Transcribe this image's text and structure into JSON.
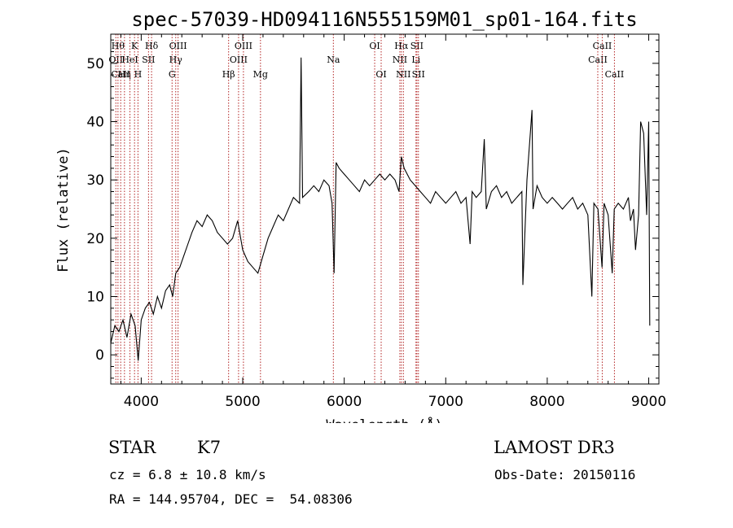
{
  "chart_data": {
    "type": "line",
    "title": "spec-57039-HD094116N555159M01_sp01-164.fits",
    "xlabel": "Wavelength (Å)",
    "ylabel": "Flux (relative)",
    "xlim": [
      3700,
      9100
    ],
    "ylim": [
      -5,
      55
    ],
    "xticks": [
      4000,
      5000,
      6000,
      7000,
      8000,
      9000
    ],
    "yticks": [
      0,
      10,
      20,
      30,
      40,
      50
    ],
    "series": [
      {
        "color": "#000000",
        "x": [
          3700,
          3740,
          3780,
          3820,
          3860,
          3900,
          3940,
          3970,
          4000,
          4040,
          4080,
          4120,
          4160,
          4200,
          4240,
          4280,
          4310,
          4340,
          4380,
          4420,
          4460,
          4500,
          4550,
          4600,
          4650,
          4700,
          4750,
          4800,
          4850,
          4900,
          4950,
          5000,
          5050,
          5100,
          5150,
          5200,
          5250,
          5300,
          5350,
          5400,
          5450,
          5500,
          5560,
          5575,
          5590,
          5650,
          5700,
          5750,
          5800,
          5850,
          5880,
          5900,
          5920,
          5950,
          6000,
          6050,
          6100,
          6150,
          6200,
          6250,
          6300,
          6350,
          6400,
          6450,
          6500,
          6540,
          6563,
          6590,
          6650,
          6700,
          6750,
          6800,
          6850,
          6900,
          6950,
          7000,
          7050,
          7100,
          7150,
          7200,
          7240,
          7260,
          7300,
          7350,
          7380,
          7400,
          7450,
          7500,
          7550,
          7600,
          7650,
          7700,
          7750,
          7760,
          7800,
          7850,
          7860,
          7900,
          7950,
          8000,
          8050,
          8100,
          8150,
          8200,
          8250,
          8300,
          8350,
          8400,
          8440,
          8460,
          8500,
          8540,
          8560,
          8600,
          8640,
          8660,
          8700,
          8750,
          8800,
          8820,
          8850,
          8870,
          8900,
          8920,
          8950,
          8980,
          9000,
          9010
        ],
        "y": [
          2,
          5,
          4,
          6,
          3,
          7,
          5,
          -1,
          6,
          8,
          9,
          7,
          10,
          8,
          11,
          12,
          10,
          14,
          15,
          17,
          19,
          21,
          23,
          22,
          24,
          23,
          21,
          20,
          19,
          20,
          23,
          18,
          16,
          15,
          14,
          17,
          20,
          22,
          24,
          23,
          25,
          27,
          26,
          51,
          27,
          28,
          29,
          28,
          30,
          29,
          26,
          14,
          33,
          32,
          31,
          30,
          29,
          28,
          30,
          29,
          30,
          31,
          30,
          31,
          30,
          28,
          34,
          32,
          30,
          29,
          28,
          27,
          26,
          28,
          27,
          26,
          27,
          28,
          26,
          27,
          19,
          28,
          27,
          28,
          37,
          25,
          28,
          29,
          27,
          28,
          26,
          27,
          28,
          12,
          30,
          42,
          25,
          29,
          27,
          26,
          27,
          26,
          25,
          26,
          27,
          25,
          26,
          24,
          10,
          26,
          25,
          15,
          26,
          24,
          14,
          25,
          26,
          25,
          27,
          23,
          25,
          18,
          24,
          40,
          38,
          24,
          40,
          5
        ]
      }
    ],
    "spectral_lines": [
      {
        "x": 3750,
        "label": "OII",
        "row": 1
      },
      {
        "x": 3771,
        "label": "Hθ",
        "row": 0
      },
      {
        "x": 3798,
        "label": "CaII",
        "row": 2
      },
      {
        "x": 3835,
        "label": "Hη",
        "row": 2
      },
      {
        "x": 3889,
        "label": "HeI",
        "row": 1
      },
      {
        "x": 3934,
        "label": "K",
        "row": 0
      },
      {
        "x": 3968,
        "label": "H",
        "row": 2
      },
      {
        "x": 4072,
        "label": "SII",
        "row": 1
      },
      {
        "x": 4102,
        "label": "Hδ",
        "row": 0
      },
      {
        "x": 4304,
        "label": "G",
        "row": 2
      },
      {
        "x": 4340,
        "label": "Hγ",
        "row": 1
      },
      {
        "x": 4363,
        "label": "OIII",
        "row": 0
      },
      {
        "x": 4861,
        "label": "Hβ",
        "row": 2
      },
      {
        "x": 4959,
        "label": "OIII",
        "row": 1
      },
      {
        "x": 5007,
        "label": "OIII",
        "row": 0
      },
      {
        "x": 5175,
        "label": "Mg",
        "row": 2
      },
      {
        "x": 5893,
        "label": "Na",
        "row": 1
      },
      {
        "x": 6300,
        "label": "OI",
        "row": 0
      },
      {
        "x": 6364,
        "label": "OI",
        "row": 2
      },
      {
        "x": 6548,
        "label": "NII",
        "row": 1
      },
      {
        "x": 6563,
        "label": "Hα",
        "row": 0
      },
      {
        "x": 6583,
        "label": "NII",
        "row": 2
      },
      {
        "x": 6707,
        "label": "Li",
        "row": 1
      },
      {
        "x": 6716,
        "label": "SII",
        "row": 0
      },
      {
        "x": 6731,
        "label": "SII",
        "row": 2
      },
      {
        "x": 8498,
        "label": "CaII",
        "row": 1
      },
      {
        "x": 8542,
        "label": "CaII",
        "row": 0
      },
      {
        "x": 8662,
        "label": "CaII",
        "row": 2
      }
    ]
  },
  "info": {
    "class": "STAR",
    "subclass": "K7",
    "survey": "LAMOST DR3",
    "cz": "cz = 6.8 ± 10.8 km/s",
    "obs_date": "Obs-Date: 20150116",
    "coords": "RA = 144.95704, DEC =  54.08306"
  }
}
